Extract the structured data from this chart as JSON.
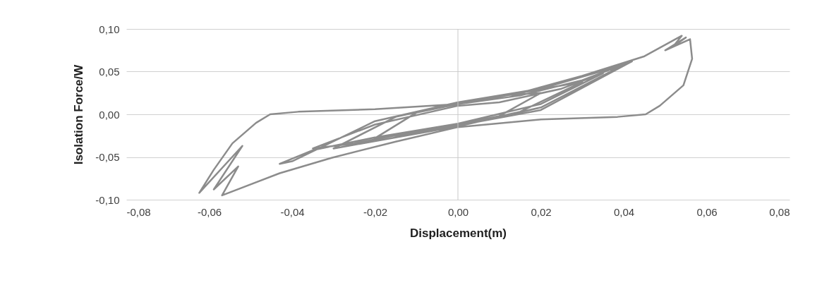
{
  "chart_data": {
    "type": "line",
    "xlabel": "Displacement(m)",
    "ylabel": "Isolation Force/W",
    "xlim": [
      -0.08,
      0.08
    ],
    "ylim": [
      -0.1,
      0.1
    ],
    "xticks": [
      {
        "value": -0.08,
        "label": "-0,08"
      },
      {
        "value": -0.06,
        "label": "-0,06"
      },
      {
        "value": -0.04,
        "label": "-0,04"
      },
      {
        "value": -0.02,
        "label": "-0,02"
      },
      {
        "value": 0,
        "label": "0,00"
      },
      {
        "value": 0.02,
        "label": "0,02"
      },
      {
        "value": 0.04,
        "label": "0,04"
      },
      {
        "value": 0.06,
        "label": "0,06"
      },
      {
        "value": 0.08,
        "label": "0,08"
      }
    ],
    "yticks": [
      {
        "value": -0.1,
        "label": "-0,10"
      },
      {
        "value": -0.05,
        "label": "-0,05"
      },
      {
        "value": 0,
        "label": "0,00"
      },
      {
        "value": 0.05,
        "label": "0,05"
      },
      {
        "value": 0.1,
        "label": "0,10"
      }
    ],
    "grid": "y",
    "legend": false,
    "marker": "none",
    "line_style": "solid",
    "ref_lines": [
      {
        "axis": "x",
        "value": 0,
        "color": "#c8c8c8"
      }
    ],
    "series": [
      {
        "color": "#8c8c8c",
        "x": [
          0,
          0.01,
          0.02,
          0.01,
          0,
          -0.01,
          -0.02,
          -0.01,
          0,
          0.015,
          0.03,
          0.015,
          0,
          -0.015,
          -0.03,
          -0.015,
          0,
          0.02,
          0.04,
          0.02,
          0,
          -0.02,
          -0.04,
          -0.043,
          -0.035,
          -0.02,
          0,
          0.02,
          0.035,
          0.025,
          0.01,
          0,
          -0.02,
          -0.035,
          -0.025,
          -0.01,
          0,
          0.02,
          0.042,
          0.03,
          0.015,
          0,
          -0.02,
          -0.0385,
          -0.0453,
          -0.0487,
          -0.0544,
          -0.0589,
          -0.0624,
          -0.052,
          -0.0589,
          -0.053,
          -0.0569,
          -0.043,
          -0.0305,
          -0.015,
          0,
          0.02,
          0.0385,
          0.0453,
          0.0487,
          0.0544,
          0.0565,
          0.056,
          0.05,
          0.055,
          0.052,
          0.054,
          0.045,
          0.03,
          0.015,
          0
        ],
        "values": [
          -0.012,
          -0.002,
          0.025,
          0.022,
          0.012,
          0.002,
          -0.028,
          -0.022,
          -0.013,
          0.003,
          0.038,
          0.025,
          0.013,
          -0.003,
          -0.04,
          -0.027,
          -0.014,
          0.008,
          0.058,
          0.03,
          0.014,
          -0.008,
          -0.055,
          -0.058,
          -0.042,
          -0.027,
          -0.011,
          0.012,
          0.048,
          0.03,
          0.014,
          0.01,
          -0.012,
          -0.04,
          -0.034,
          -0.02,
          -0.013,
          0.005,
          0.062,
          0.04,
          0.022,
          0.012,
          0.006,
          0.003,
          0,
          -0.01,
          -0.034,
          -0.065,
          -0.092,
          -0.037,
          -0.088,
          -0.061,
          -0.095,
          -0.069,
          -0.051,
          -0.032,
          -0.015,
          -0.006,
          -0.003,
          0,
          0.01,
          0.034,
          0.065,
          0.088,
          0.075,
          0.09,
          0.08,
          0.092,
          0.068,
          0.045,
          0.025,
          0.012
        ]
      }
    ]
  }
}
